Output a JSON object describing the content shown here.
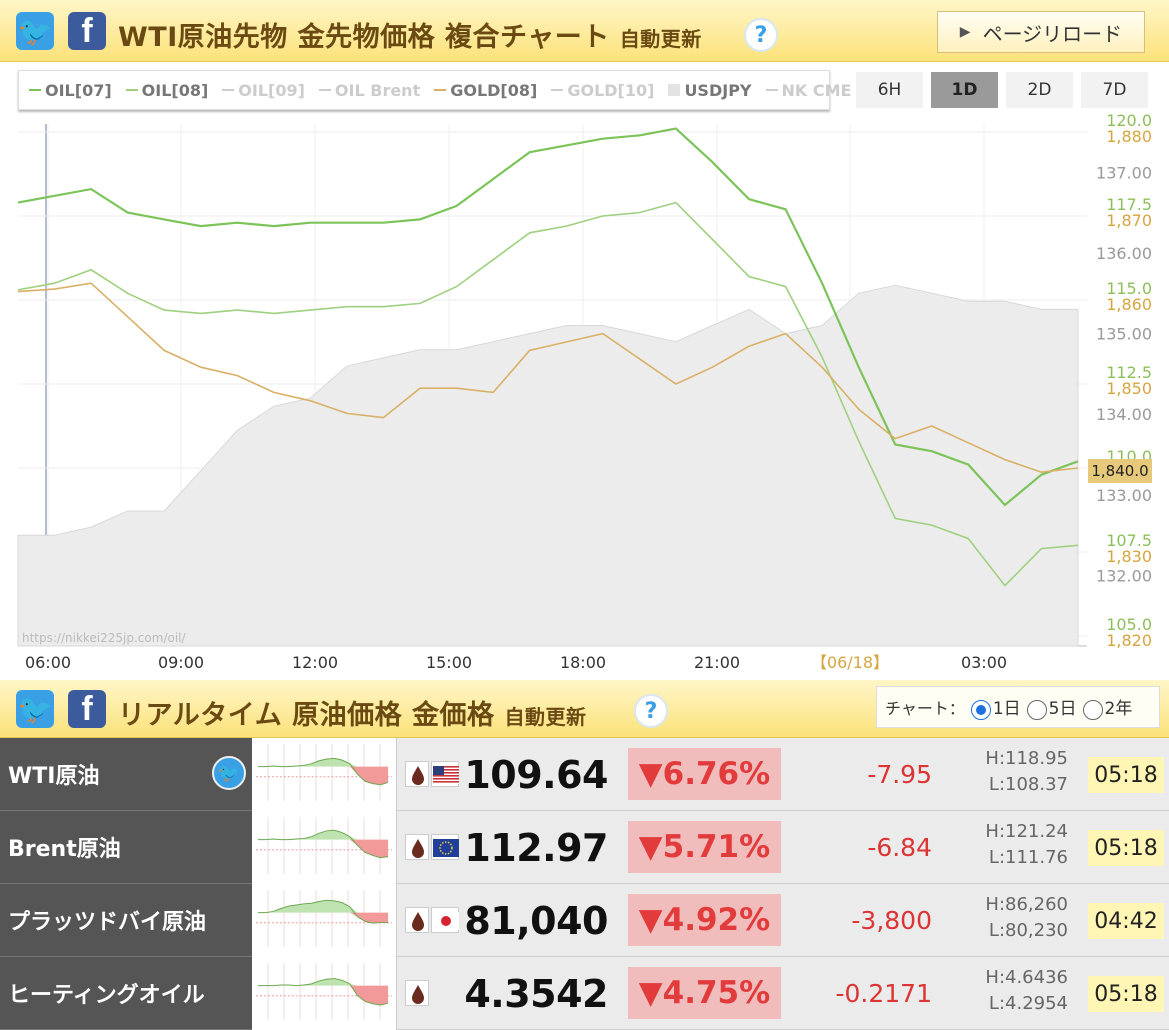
{
  "header": {
    "title": "WTI原油先物 金先物価格 複合チャート",
    "subtitle": "自動更新",
    "help": "?",
    "reload_label": "ページリロード"
  },
  "legend": [
    {
      "label": "OIL[07]",
      "color": "#7cc35a",
      "active": true
    },
    {
      "label": "OIL[08]",
      "color": "#9fd07f",
      "active": true
    },
    {
      "label": "OIL[09]",
      "color": "#cccccc",
      "active": false
    },
    {
      "label": "OIL Brent",
      "color": "#cccccc",
      "active": false
    },
    {
      "label": "GOLD[08]",
      "color": "#d9b066",
      "active": true
    },
    {
      "label": "GOLD[10]",
      "color": "#cccccc",
      "active": false
    },
    {
      "label": "USDJPY",
      "color": "#e3e3e3",
      "active": true
    },
    {
      "label": "NK CME",
      "color": "#cccccc",
      "active": false
    }
  ],
  "timeframes": [
    "6H",
    "1D",
    "2D",
    "7D"
  ],
  "active_timeframe": "1D",
  "watermark": "https://nikkei225jp.com/oil/",
  "current_price_tag": "1,840.0",
  "chart_data": {
    "type": "line",
    "x_ticks": [
      "06:00",
      "09:00",
      "12:00",
      "15:00",
      "18:00",
      "21:00",
      "【06/18】",
      "03:00"
    ],
    "y_oil_ticks": [
      "120.0",
      "117.5",
      "115.0",
      "112.5",
      "110.0",
      "107.5",
      "105.0"
    ],
    "y_gold_ticks": [
      "1,880",
      "1,870",
      "1,860",
      "1,850",
      "1,840",
      "1,830",
      "1,820"
    ],
    "y_usdjpy_ticks": [
      "137.00",
      "136.00",
      "135.00",
      "134.00",
      "133.00",
      "132.00"
    ],
    "oil_range": [
      105.0,
      120.0
    ],
    "gold_range": [
      1820,
      1880
    ],
    "usdjpy_range": [
      131.25,
      137.5
    ],
    "series": [
      {
        "name": "OIL[07]",
        "color": "#7cc35a",
        "axis": "oil",
        "values": [
          117.9,
          118.1,
          118.3,
          117.6,
          117.4,
          117.2,
          117.3,
          117.2,
          117.3,
          117.3,
          117.3,
          117.4,
          117.8,
          118.6,
          119.4,
          119.6,
          119.8,
          119.9,
          120.1,
          119.1,
          118.0,
          117.7,
          115.5,
          113.0,
          110.7,
          110.5,
          110.1,
          108.9,
          109.8,
          110.2
        ]
      },
      {
        "name": "OIL[08]",
        "color": "#9fd07f",
        "axis": "oil",
        "values": [
          115.3,
          115.5,
          115.9,
          115.2,
          114.7,
          114.6,
          114.7,
          114.6,
          114.7,
          114.8,
          114.8,
          114.9,
          115.4,
          116.2,
          117.0,
          117.2,
          117.5,
          117.6,
          117.9,
          116.8,
          115.7,
          115.4,
          113.3,
          110.8,
          108.5,
          108.3,
          107.9,
          106.5,
          107.6,
          107.7
        ]
      },
      {
        "name": "GOLD[08]",
        "color": "#d9b066",
        "axis": "gold",
        "values": [
          1861.0,
          1861.3,
          1862.0,
          1858.0,
          1854.0,
          1852.0,
          1851.0,
          1849.0,
          1848.0,
          1846.5,
          1846.0,
          1849.5,
          1849.5,
          1849.0,
          1854.0,
          1855.0,
          1856.0,
          1853.0,
          1850.0,
          1852.0,
          1854.5,
          1856.0,
          1852.0,
          1847.0,
          1843.5,
          1845.0,
          1843.0,
          1841.0,
          1839.5,
          1840.0
        ]
      },
      {
        "name": "USDJPY",
        "color": "#e3e3e3",
        "axis": "usdjpy",
        "values": [
          132.5,
          132.5,
          132.6,
          132.8,
          132.8,
          133.3,
          133.8,
          134.1,
          134.2,
          134.6,
          134.7,
          134.8,
          134.8,
          134.9,
          135.0,
          135.1,
          135.1,
          135.0,
          134.9,
          135.1,
          135.3,
          135.0,
          135.1,
          135.5,
          135.6,
          135.5,
          135.4,
          135.4,
          135.3,
          135.3
        ]
      }
    ]
  },
  "realtime": {
    "title": "リアルタイム 原油価格 金価格",
    "subtitle": "自動更新",
    "help": "?",
    "chart_label": "チャート：",
    "ranges": [
      "1日",
      "5日",
      "2年"
    ],
    "active_range": "1日",
    "rows": [
      {
        "name": "WTI原油",
        "twitter": true,
        "flag": "us",
        "price": "109.64",
        "pct": "▼6.76%",
        "change": "-7.95",
        "high": "H:118.95",
        "low": "L:108.37",
        "time": "05:18",
        "spark": [
          0.55,
          0.55,
          0.56,
          0.55,
          0.55,
          0.56,
          0.57,
          0.6,
          0.65,
          0.68,
          0.69,
          0.66,
          0.6,
          0.42,
          0.3,
          0.26,
          0.24,
          0.28
        ]
      },
      {
        "name": "Brent原油",
        "twitter": false,
        "flag": "eu",
        "price": "112.97",
        "pct": "▼5.71%",
        "change": "-6.84",
        "high": "H:121.24",
        "low": "L:111.76",
        "time": "05:18",
        "spark": [
          0.55,
          0.55,
          0.56,
          0.55,
          0.55,
          0.56,
          0.57,
          0.6,
          0.66,
          0.7,
          0.71,
          0.67,
          0.6,
          0.45,
          0.33,
          0.28,
          0.24,
          0.26
        ]
      },
      {
        "name": "プラッツドバイ原油",
        "twitter": false,
        "flag": "jp",
        "price": "81,040",
        "pct": "▼4.92%",
        "change": "-3,800",
        "high": "H:86,260",
        "low": "L:80,230",
        "time": "04:42",
        "spark": [
          0.55,
          0.55,
          0.57,
          0.62,
          0.66,
          0.68,
          0.7,
          0.71,
          0.74,
          0.76,
          0.75,
          0.72,
          0.65,
          0.48,
          0.4,
          0.37,
          0.38,
          0.38
        ]
      },
      {
        "name": "ヒーティングオイル",
        "twitter": false,
        "flag": "none",
        "price": "4.3542",
        "pct": "▼4.75%",
        "change": "-0.2171",
        "high": "H:4.6436",
        "low": "L:4.2954",
        "time": "05:18",
        "spark": [
          0.55,
          0.55,
          0.55,
          0.56,
          0.56,
          0.55,
          0.56,
          0.58,
          0.63,
          0.66,
          0.67,
          0.64,
          0.58,
          0.38,
          0.28,
          0.24,
          0.22,
          0.25
        ]
      }
    ]
  }
}
